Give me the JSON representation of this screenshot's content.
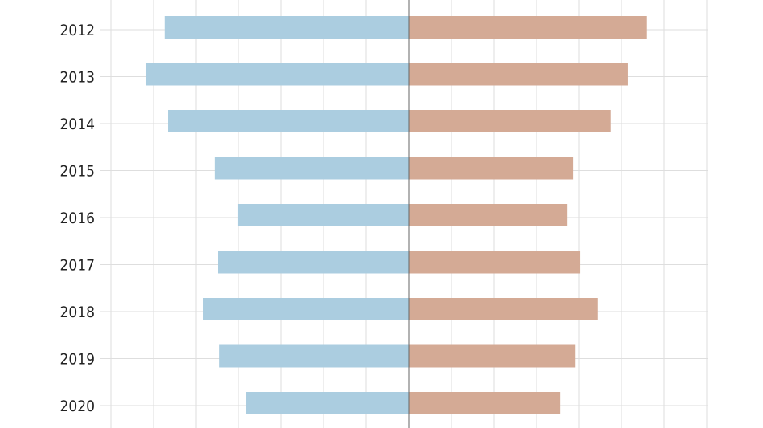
{
  "chart_data": {
    "type": "bar",
    "orientation": "horizontal-diverging",
    "categories": [
      "2012",
      "2013",
      "2014",
      "2015",
      "2016",
      "2017",
      "2018",
      "2019",
      "2020"
    ],
    "series": [
      {
        "side": "left",
        "color": "#abcde0",
        "values": [
          5.74,
          6.17,
          5.66,
          4.55,
          4.02,
          4.49,
          4.83,
          4.45,
          3.83
        ]
      },
      {
        "side": "right",
        "color": "#d4aa95",
        "values": [
          5.58,
          5.15,
          4.75,
          3.87,
          3.72,
          4.02,
          4.43,
          3.91,
          3.55
        ]
      }
    ],
    "xlim": [
      -7,
      7
    ],
    "x_tick_labels_shown": false,
    "grid": true,
    "legend": "none",
    "title": "",
    "xlabel": "",
    "ylabel": ""
  }
}
